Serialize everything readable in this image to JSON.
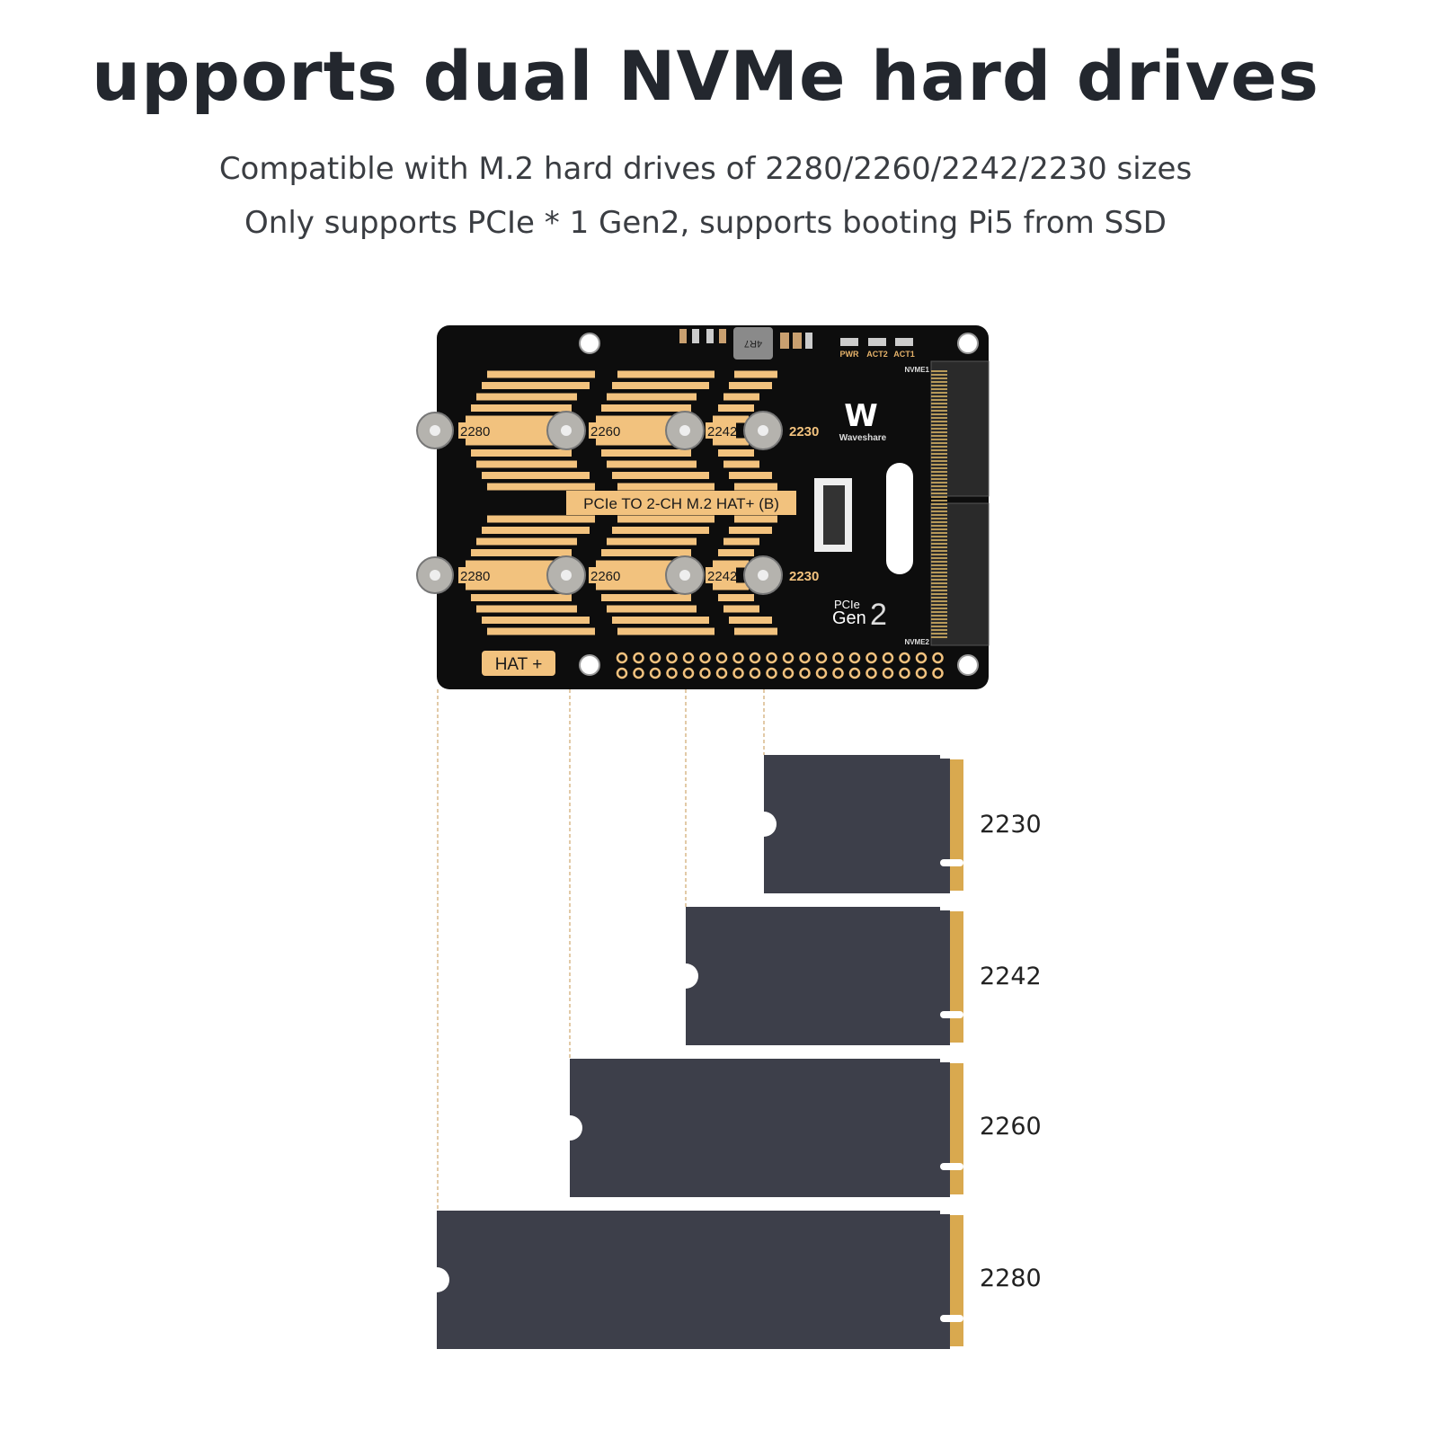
{
  "header": {
    "title": "upports dual NVMe hard drives",
    "subtitle_lines": [
      "Compatible with M.2 hard drives of 2280/2260/2242/2230 sizes",
      "Only supports PCIe * 1 Gen2, supports booting Pi5 from SSD"
    ]
  },
  "board": {
    "name": "PCIe TO 2-CH M.2 HAT+ (B)",
    "hat_label": "HAT +",
    "brand": "Waveshare",
    "gen_label_top": "PCIe",
    "gen_label_bottom": "Gen",
    "gen_number": "2",
    "leds": [
      "PWR",
      "ACT2",
      "ACT1"
    ],
    "slots": [
      "NVME1",
      "NVME2"
    ],
    "inductor": "4R7",
    "mount_labels": [
      "2280",
      "2260",
      "2242",
      "2230"
    ]
  },
  "drives": [
    {
      "size": "2230"
    },
    {
      "size": "2242"
    },
    {
      "size": "2260"
    },
    {
      "size": "2280"
    }
  ],
  "colors": {
    "pcb": "#0d0d0d",
    "gold": "#f2c27e",
    "drive": "#3d3f4a",
    "contact": "#d9a94f",
    "text": "#23272e"
  }
}
